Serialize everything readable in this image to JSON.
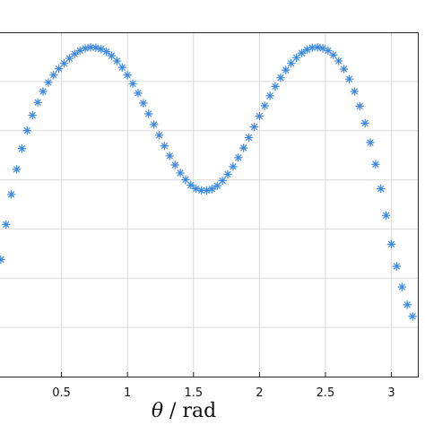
{
  "chart_data": {
    "type": "scatter",
    "title": "",
    "xlabel": {
      "symbol": "θ",
      "text": " / rad"
    },
    "ylabel": "",
    "xlim": [
      0.0,
      3.2
    ],
    "x_ticks": [
      0.5,
      1,
      1.5,
      2,
      2.5,
      3
    ],
    "x_tick_labels": [
      "0.5",
      "1",
      "1.5",
      "2",
      "2.5",
      "3"
    ],
    "grid": true,
    "marker": "asterisk",
    "colors": {
      "series": "#3b87e0",
      "grid": "#d9d9d9",
      "frame": "#262626"
    },
    "series": [
      {
        "points": [
          [
            0.0,
            0.24
          ],
          [
            0.04,
            0.35
          ],
          [
            0.08,
            0.455
          ],
          [
            0.12,
            0.545
          ],
          [
            0.16,
            0.62
          ],
          [
            0.2,
            0.682
          ],
          [
            0.24,
            0.736
          ],
          [
            0.28,
            0.782
          ],
          [
            0.32,
            0.82
          ],
          [
            0.36,
            0.853
          ],
          [
            0.4,
            0.88
          ],
          [
            0.44,
            0.902
          ],
          [
            0.48,
            0.921
          ],
          [
            0.52,
            0.937
          ],
          [
            0.56,
            0.952
          ],
          [
            0.6,
            0.965
          ],
          [
            0.64,
            0.975
          ],
          [
            0.68,
            0.982
          ],
          [
            0.72,
            0.985
          ],
          [
            0.76,
            0.984
          ],
          [
            0.8,
            0.98
          ],
          [
            0.84,
            0.972
          ],
          [
            0.88,
            0.96
          ],
          [
            0.92,
            0.944
          ],
          [
            0.96,
            0.925
          ],
          [
            1.0,
            0.902
          ],
          [
            1.04,
            0.876
          ],
          [
            1.08,
            0.848
          ],
          [
            1.12,
            0.818
          ],
          [
            1.16,
            0.786
          ],
          [
            1.2,
            0.754
          ],
          [
            1.24,
            0.722
          ],
          [
            1.28,
            0.69
          ],
          [
            1.32,
            0.66
          ],
          [
            1.36,
            0.633
          ],
          [
            1.4,
            0.609
          ],
          [
            1.44,
            0.589
          ],
          [
            1.48,
            0.573
          ],
          [
            1.52,
            0.562
          ],
          [
            1.56,
            0.557
          ],
          [
            1.6,
            0.557
          ],
          [
            1.64,
            0.561
          ],
          [
            1.68,
            0.571
          ],
          [
            1.72,
            0.586
          ],
          [
            1.76,
            0.605
          ],
          [
            1.8,
            0.628
          ],
          [
            1.84,
            0.655
          ],
          [
            1.88,
            0.684
          ],
          [
            1.92,
            0.715
          ],
          [
            1.96,
            0.747
          ],
          [
            2.0,
            0.779
          ],
          [
            2.04,
            0.81
          ],
          [
            2.08,
            0.84
          ],
          [
            2.12,
            0.868
          ],
          [
            2.16,
            0.894
          ],
          [
            2.2,
            0.917
          ],
          [
            2.24,
            0.937
          ],
          [
            2.28,
            0.954
          ],
          [
            2.32,
            0.968
          ],
          [
            2.36,
            0.978
          ],
          [
            2.4,
            0.984
          ],
          [
            2.44,
            0.985
          ],
          [
            2.48,
            0.982
          ],
          [
            2.52,
            0.975
          ],
          [
            2.56,
            0.962
          ],
          [
            2.6,
            0.944
          ],
          [
            2.64,
            0.92
          ],
          [
            2.68,
            0.89
          ],
          [
            2.72,
            0.853
          ],
          [
            2.76,
            0.809
          ],
          [
            2.8,
            0.758
          ],
          [
            2.84,
            0.7
          ],
          [
            2.88,
            0.635
          ],
          [
            2.92,
            0.562
          ],
          [
            2.96,
            0.482
          ],
          [
            3.0,
            0.396
          ],
          [
            3.04,
            0.33
          ],
          [
            3.08,
            0.268
          ],
          [
            3.12,
            0.215
          ],
          [
            3.16,
            0.18
          ]
        ]
      }
    ]
  }
}
